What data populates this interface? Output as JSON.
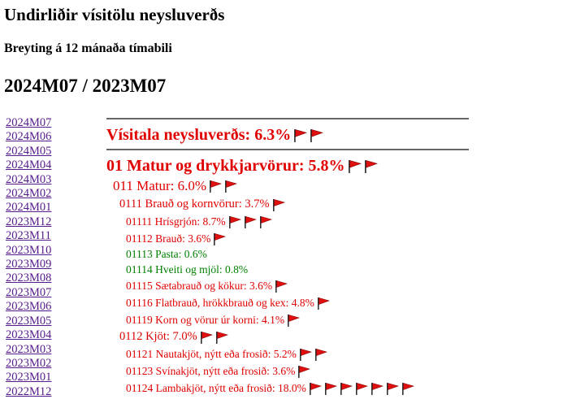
{
  "header": {
    "title": "Undirliðir vísitölu neysluverðs",
    "subtitle": "Breyting á 12 mánaða tímabili",
    "period": "2024M07 / 2023M07"
  },
  "months": [
    "2024M07",
    "2024M06",
    "2024M05",
    "2024M04",
    "2024M03",
    "2024M02",
    "2024M01",
    "2023M12",
    "2023M11",
    "2023M10",
    "2023M09",
    "2023M08",
    "2023M07",
    "2023M06",
    "2023M05",
    "2023M04",
    "2023M03",
    "2023M02",
    "2023M01",
    "2022M12"
  ],
  "items": [
    {
      "text": "Vísitala neysluverðs: 6.3%",
      "level": 0,
      "flags": 2,
      "color": "#e00000"
    },
    {
      "text": "01 Matur og drykkjarvörur: 5.8%",
      "level": 1,
      "flags": 2,
      "color": "#e00000"
    },
    {
      "text": "011 Matur: 6.0%",
      "level": 2,
      "flags": 2,
      "color": "#e00000"
    },
    {
      "text": "0111 Brauð og kornvörur: 3.7%",
      "level": 3,
      "flags": 1,
      "color": "#e00000"
    },
    {
      "text": "01111 Hrísgrjón: 8.7%",
      "level": 4,
      "flags": 3,
      "color": "#e00000"
    },
    {
      "text": "01112 Brauð: 3.6%",
      "level": 4,
      "flags": 1,
      "color": "#e00000"
    },
    {
      "text": "01113 Pasta: 0.6%",
      "level": 4,
      "flags": 0,
      "color": "#008000"
    },
    {
      "text": "01114 Hveiti og mjöl: 0.8%",
      "level": 4,
      "flags": 0,
      "color": "#008000"
    },
    {
      "text": "01115 Sætabrauð og kökur: 3.6%",
      "level": 4,
      "flags": 1,
      "color": "#e00000"
    },
    {
      "text": "01116 Flatbrauð, hrökkbrauð og kex: 4.8%",
      "level": 4,
      "flags": 1,
      "color": "#e00000"
    },
    {
      "text": "01119 Korn og vörur úr korni: 4.1%",
      "level": 4,
      "flags": 1,
      "color": "#e00000"
    },
    {
      "text": "0112 Kjöt: 7.0%",
      "level": 3,
      "flags": 2,
      "color": "#e00000"
    },
    {
      "text": "01121 Nautakjöt, nýtt eða frosið: 5.2%",
      "level": 4,
      "flags": 2,
      "color": "#e00000"
    },
    {
      "text": "01123 Svínakjöt, nýtt eða frosið: 3.6%",
      "level": 4,
      "flags": 1,
      "color": "#e00000"
    },
    {
      "text": "01124 Lambakjöt, nýtt eða frosið: 18.0%",
      "level": 4,
      "flags": 7,
      "color": "#e00000"
    }
  ]
}
